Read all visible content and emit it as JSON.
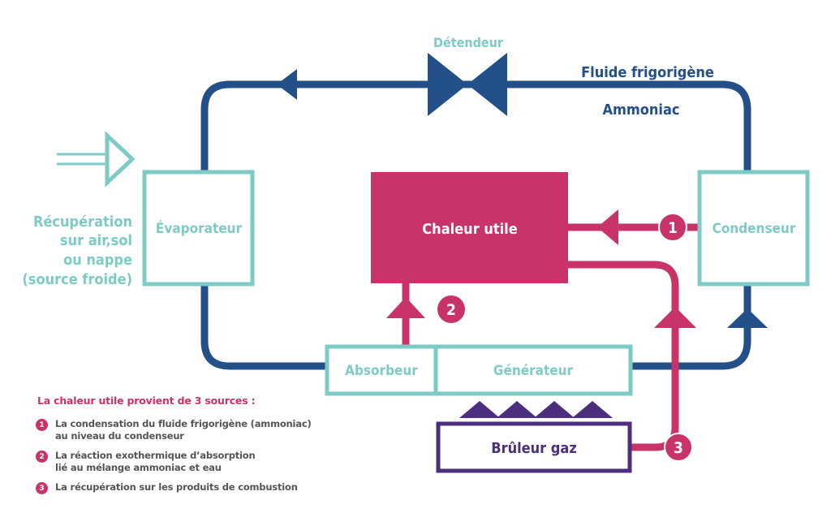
{
  "labels": {
    "detendeur": "Détendeur",
    "fluide": "Fluide frigorigène",
    "ammoniac": "Ammoniac",
    "evaporateur": "Évaporateur",
    "chaleur_utile": "Chaleur utile",
    "condenseur": "Condenseur",
    "absorbeur": "Absorbeur",
    "generateur": "Générateur",
    "bruleur": "Brûleur gaz",
    "recuperation": [
      "Récupération",
      "sur air,sol",
      "ou nappe",
      "(source froide)"
    ]
  },
  "markers": [
    "1",
    "2",
    "3",
    "3"
  ],
  "legend": {
    "title": "La chaleur utile provient de 3 sources :",
    "items": [
      {
        "num": "1",
        "text": [
          "La condensation du fluide frigorigène (ammoniac)",
          "au niveau du condenseur"
        ]
      },
      {
        "num": "2",
        "text": [
          "La réaction exothermique d’absorption",
          "lié au mélange ammoniac et eau"
        ]
      },
      {
        "num": "3",
        "text": [
          "La récupération sur les produits de combustion"
        ]
      }
    ]
  },
  "colors": {
    "navy": "#24508a",
    "teal": "#7ecbc6",
    "magenta": "#c8346a",
    "purple": "#4b2f7e",
    "white": "#ffffff"
  }
}
